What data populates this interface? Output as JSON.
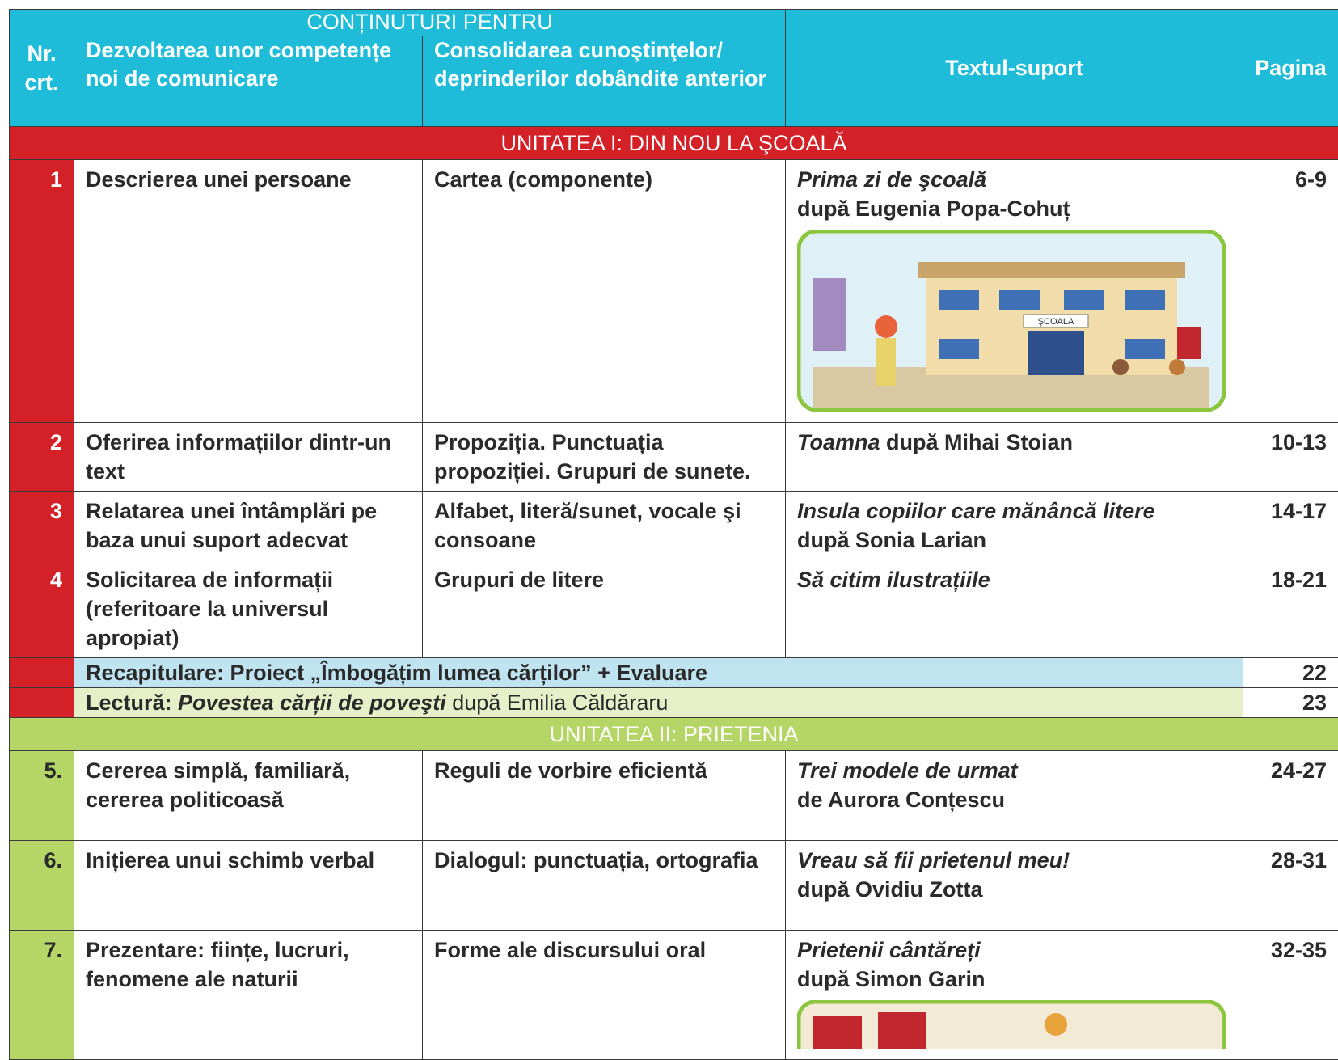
{
  "header": {
    "nr": "Nr. crt.",
    "group": "CONȚINUTURI PENTRU",
    "new_skills": "Dezvoltarea unor competențe noi de comunicare",
    "consolidation": "Consolidarea cunoştinţelor/ deprinderilor dobândite anterior",
    "text": "Textul-suport",
    "page": "Pagina"
  },
  "units": [
    {
      "title": "UNITATEA I: DIN NOU LA ŞCOALĂ",
      "rows": [
        {
          "nr": "1",
          "skills": "Descrierea unei persoane",
          "consolidation": "Cartea (componente)",
          "text_title": "Prima zi de şcoală",
          "text_author": "după Eugenia Popa-Cohuț",
          "pages": "6-9"
        },
        {
          "nr": "2",
          "skills": "Oferirea informațiilor dintr-un text",
          "consolidation": "Propoziția. Punctuația propoziției. Grupuri de sunete.",
          "text_title": "Toamna",
          "text_author": "după Mihai Stoian",
          "pages": "10-13"
        },
        {
          "nr": "3",
          "skills": "Relatarea unei întâmplări pe baza unui suport adecvat",
          "consolidation": "Alfabet, literă/sunet, vocale şi consoane",
          "text_title": "Insula copiilor care mănâncă litere",
          "text_author": "după Sonia Larian",
          "pages": "14-17"
        },
        {
          "nr": "4",
          "skills": "Solicitarea de informații (referitoare la universul apropiat)",
          "consolidation": "Grupuri de litere",
          "text_title": "Să citim ilustrațiile",
          "pages": "18-21"
        }
      ],
      "review": {
        "text": "Recapitulare: Proiect „Îmbogățim lumea cărților” + Evaluare",
        "page": "22"
      },
      "reading": {
        "label": "Lectură:",
        "title": "Povestea cărții de poveşti",
        "author": "după Emilia Căldăraru",
        "page": "23"
      }
    },
    {
      "title": "UNITATEA II: PRIETENIA",
      "rows": [
        {
          "nr": "5.",
          "skills": "Cererea simplă, familiară, cererea politicoasă",
          "consolidation": "Reguli de vorbire eficientă",
          "text_title": "Trei modele de urmat",
          "text_author": "de Aurora Conțescu",
          "pages": "24-27"
        },
        {
          "nr": "6.",
          "skills": "Inițierea unui schimb verbal",
          "consolidation": "Dialogul: punctuația, ortografia",
          "text_title": "Vreau să fii prietenul meu!",
          "text_author": "după Ovidiu Zotta",
          "pages": "28-31"
        },
        {
          "nr": "7.",
          "skills": "Prezentare: ființe, lucruri, fenomene ale naturii",
          "consolidation": "Forme ale discursului oral",
          "text_title": "Prietenii cântăreți",
          "text_author": "după Simon Garin",
          "pages": "32-35"
        }
      ]
    }
  ],
  "illustration_label": "ŞCOALA"
}
